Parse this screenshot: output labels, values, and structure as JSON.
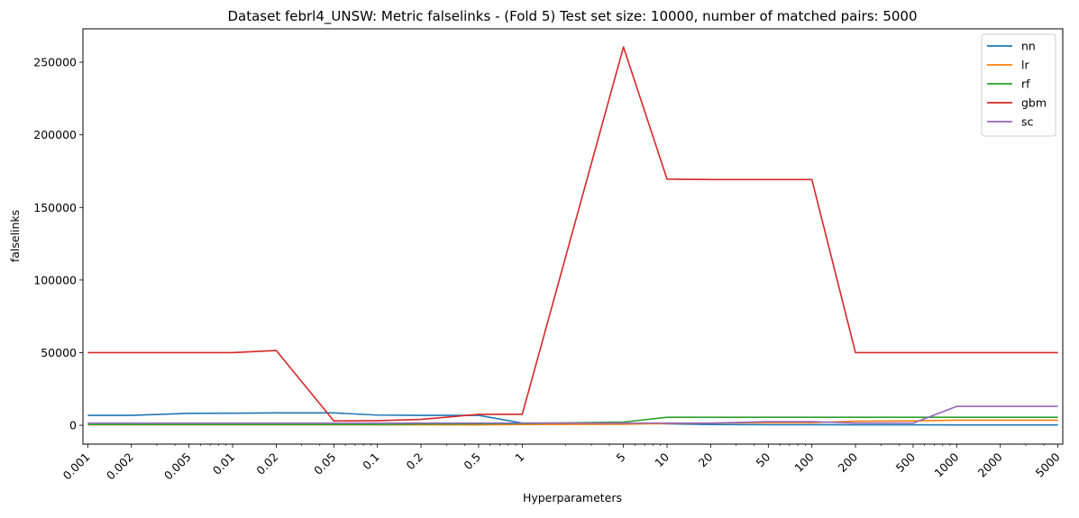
{
  "chart_data": {
    "type": "line",
    "title": "Dataset febrl4_UNSW: Metric falselinks - (Fold 5) Test set size: 10000, number of matched pairs: 5000",
    "xlabel": "Hyperparameters",
    "ylabel": "falselinks",
    "x_scale": "log",
    "x": [
      0.001,
      0.002,
      0.005,
      0.01,
      0.02,
      0.05,
      0.1,
      0.2,
      0.5,
      1,
      5,
      10,
      20,
      50,
      100,
      200,
      500,
      1000,
      2000,
      5000
    ],
    "x_tick_labels": [
      "0.001",
      "0.002",
      "0.005",
      "0.01",
      "0.02",
      "0.05",
      "0.1",
      "0.2",
      "0.5",
      "1",
      "5",
      "10",
      "20",
      "50",
      "100",
      "200",
      "500",
      "1000",
      "2000",
      "5000"
    ],
    "y_ticks": [
      0,
      50000,
      100000,
      150000,
      200000,
      250000
    ],
    "ylim": [
      -13000,
      273000
    ],
    "legend": {
      "position": "top-right"
    },
    "series": [
      {
        "name": "nn",
        "color": "#1f77b4",
        "values": [
          6800,
          6800,
          8200,
          8300,
          8500,
          8500,
          7000,
          6800,
          6800,
          1500,
          1500,
          1000,
          500,
          400,
          400,
          300,
          300,
          200,
          200,
          200
        ]
      },
      {
        "name": "lr",
        "color": "#ff7f0e",
        "values": [
          300,
          300,
          300,
          300,
          300,
          300,
          300,
          300,
          300,
          500,
          700,
          1200,
          1500,
          1800,
          1800,
          2800,
          3000,
          3500,
          3500,
          3500
        ]
      },
      {
        "name": "rf",
        "color": "#2ca02c",
        "values": [
          500,
          500,
          500,
          500,
          500,
          500,
          500,
          800,
          1000,
          1200,
          2200,
          5500,
          5500,
          5500,
          5500,
          5500,
          5500,
          5500,
          5500,
          5500
        ]
      },
      {
        "name": "gbm",
        "color": "#d62728",
        "values": [
          50000,
          50000,
          50000,
          50000,
          51500,
          3000,
          3200,
          4000,
          7500,
          7500,
          260500,
          169500,
          169200,
          169200,
          169200,
          50000,
          50000,
          50000,
          50000,
          50000
        ]
      },
      {
        "name": "sc",
        "color": "#9467bd",
        "values": [
          1500,
          1500,
          1500,
          1500,
          1500,
          1500,
          1500,
          1500,
          1500,
          1500,
          1500,
          1500,
          1500,
          2500,
          2500,
          1500,
          1500,
          13000,
          13000,
          13000
        ]
      }
    ]
  }
}
